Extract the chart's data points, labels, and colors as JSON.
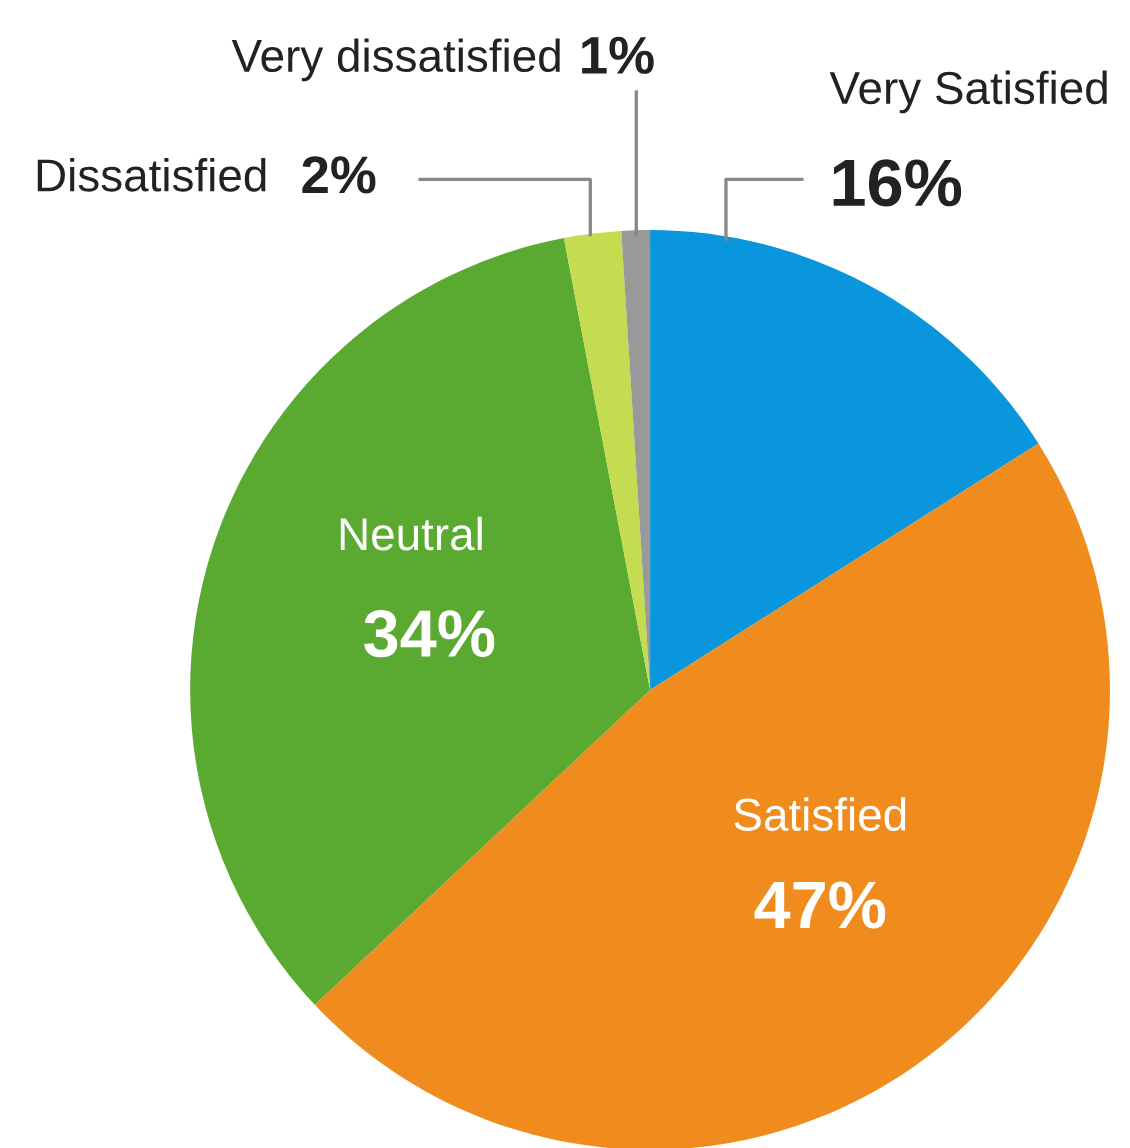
{
  "chart_data": {
    "type": "pie",
    "categories": [
      "Very Satisfied",
      "Satisfied",
      "Neutral",
      "Dissatisfied",
      "Very dissatisfied"
    ],
    "values": [
      16,
      47,
      34,
      2,
      1
    ],
    "colors": [
      "#0a96dc",
      "#f08c1e",
      "#5aaa32",
      "#c3dc50",
      "#999999"
    ],
    "value_labels": [
      "16%",
      "47%",
      "34%",
      "2%",
      "1%"
    ]
  }
}
